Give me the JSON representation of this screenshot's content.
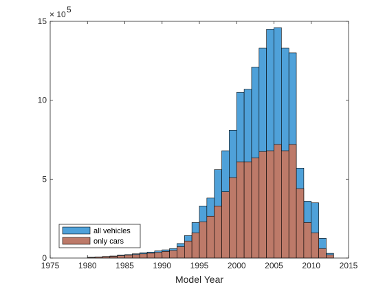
{
  "chart_data": {
    "type": "bar",
    "title": "",
    "xlabel": "Model Year",
    "ylabel": "",
    "exponent_label": {
      "base": "× 10",
      "power": "5"
    },
    "xlim": [
      1975,
      2015
    ],
    "ylim": [
      0,
      15
    ],
    "x_ticks": [
      "1975",
      "1980",
      "1985",
      "1990",
      "1995",
      "2000",
      "2005",
      "2010",
      "2015"
    ],
    "y_ticks": [
      "0",
      "5",
      "10",
      "15"
    ],
    "grid": false,
    "legend_position": "bottom-left",
    "bins": [
      1980,
      1981,
      1982,
      1983,
      1984,
      1985,
      1986,
      1987,
      1988,
      1989,
      1990,
      1991,
      1992,
      1993,
      1994,
      1995,
      1996,
      1997,
      1998,
      1999,
      2000,
      2001,
      2002,
      2003,
      2004,
      2005,
      2006,
      2007,
      2008,
      2009,
      2010,
      2011,
      2012
    ],
    "series": [
      {
        "name": "all vehicles",
        "color": "#4fa1d9",
        "values": [
          0.05,
          0.07,
          0.1,
          0.13,
          0.18,
          0.22,
          0.27,
          0.33,
          0.38,
          0.45,
          0.52,
          0.6,
          0.92,
          1.42,
          2.25,
          3.3,
          3.8,
          5.6,
          6.8,
          8.1,
          10.5,
          10.7,
          12.1,
          13.3,
          14.5,
          14.6,
          13.3,
          13.0,
          5.7,
          3.6,
          3.5,
          1.25,
          0.3
        ]
      },
      {
        "name": "only cars",
        "color": "#bd7a69",
        "values": [
          0.04,
          0.06,
          0.09,
          0.11,
          0.15,
          0.18,
          0.22,
          0.27,
          0.31,
          0.36,
          0.42,
          0.48,
          0.72,
          1.08,
          1.6,
          2.3,
          2.65,
          3.3,
          4.2,
          5.1,
          6.1,
          6.1,
          6.35,
          6.75,
          6.8,
          7.2,
          6.8,
          7.2,
          4.4,
          2.25,
          1.6,
          0.6,
          0.2
        ]
      }
    ]
  }
}
